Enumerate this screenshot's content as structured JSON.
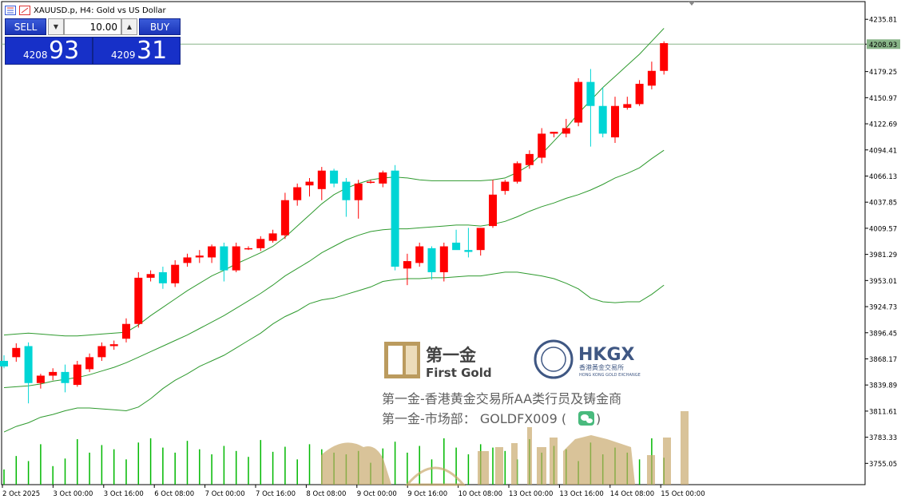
{
  "window": {
    "title": "XAUUSD.p, H4:  Gold vs US Dollar"
  },
  "trade_panel": {
    "sell_label": "SELL",
    "buy_label": "BUY",
    "lot_value": "10.00",
    "lot_down_icon": "triangle-down",
    "lot_up_icon": "triangle-up",
    "sell_price_prefix": "4208",
    "sell_price_big": "93",
    "buy_price_prefix": "4209",
    "buy_price_big": "31"
  },
  "watermark": {
    "first_gold_cn": "第一金",
    "first_gold_en": "First Gold",
    "hkgx": "HKGX",
    "hkgx_cn": "香港黃金交易所",
    "hkgx_en": "HONG KONG GOLD EXCHANGE",
    "line1": "第一金-香港黄金交易所AA类行员及铸金商",
    "line2": "第一金-市场部：  GOLDFX009  (",
    "line2_end": ")",
    "wechat_icon": "wechat-icon"
  },
  "colors": {
    "bull": "#ff0000",
    "bear": "#00d5d5",
    "band": "#2e9a2e",
    "volume": "#00b800",
    "price_line": "#88b488"
  },
  "chart_data": {
    "type": "candlestick",
    "symbol": "XAUUSD.p",
    "timeframe": "H4",
    "current_price": 4208.93,
    "ylim": [
      3732,
      4255
    ],
    "y_ticks": [
      "4235.81",
      "4208.93",
      "4179.25",
      "4150.97",
      "4122.69",
      "4094.41",
      "4066.13",
      "4037.85",
      "4009.57",
      "3981.29",
      "3953.01",
      "3924.73",
      "3896.45",
      "3868.17",
      "3839.89",
      "3811.61",
      "3783.33",
      "3755.05"
    ],
    "x_ticks": [
      "2 Oct 2025",
      "3 Oct 00:00",
      "3 Oct 16:00",
      "6 Oct 08:00",
      "7 Oct 00:00",
      "7 Oct 16:00",
      "8 Oct 08:00",
      "9 Oct 00:00",
      "9 Oct 16:00",
      "10 Oct 08:00",
      "13 Oct 00:00",
      "13 Oct 16:00",
      "14 Oct 08:00",
      "15 Oct 00:00"
    ],
    "candles": [
      [
        3866,
        3872,
        3858,
        3860
      ],
      [
        3870,
        3885,
        3865,
        3880
      ],
      [
        3882,
        3886,
        3820,
        3842
      ],
      [
        3842,
        3852,
        3836,
        3850
      ],
      [
        3850,
        3858,
        3845,
        3854
      ],
      [
        3854,
        3862,
        3832,
        3842
      ],
      [
        3840,
        3866,
        3838,
        3862
      ],
      [
        3857,
        3874,
        3854,
        3870
      ],
      [
        3870,
        3886,
        3866,
        3882
      ],
      [
        3882,
        3888,
        3878,
        3884
      ],
      [
        3890,
        3912,
        3886,
        3906
      ],
      [
        3906,
        3962,
        3902,
        3956
      ],
      [
        3956,
        3964,
        3952,
        3960
      ],
      [
        3962,
        3968,
        3944,
        3950
      ],
      [
        3950,
        3975,
        3946,
        3970
      ],
      [
        3972,
        3982,
        3968,
        3978
      ],
      [
        3978,
        3986,
        3972,
        3980
      ],
      [
        3978,
        3992,
        3972,
        3990
      ],
      [
        3990,
        3994,
        3952,
        3964
      ],
      [
        3964,
        3994,
        3962,
        3990
      ],
      [
        3988,
        3990,
        3986,
        3988
      ],
      [
        3988,
        4001,
        3985,
        3998
      ],
      [
        3996,
        4008,
        3994,
        4004
      ],
      [
        4002,
        4048,
        3998,
        4040
      ],
      [
        4040,
        4058,
        4034,
        4054
      ],
      [
        4056,
        4064,
        4044,
        4060
      ],
      [
        4052,
        4076,
        4040,
        4072
      ],
      [
        4072,
        4074,
        4054,
        4058
      ],
      [
        4060,
        4064,
        4022,
        4040
      ],
      [
        4040,
        4062,
        4020,
        4058
      ],
      [
        4060,
        4062,
        4058,
        4060
      ],
      [
        4058,
        4072,
        4054,
        4070
      ],
      [
        4072,
        4078,
        3964,
        3968
      ],
      [
        3966,
        3982,
        3948,
        3974
      ],
      [
        3972,
        3994,
        3968,
        3990
      ],
      [
        3988,
        3990,
        3954,
        3962
      ],
      [
        3962,
        3994,
        3952,
        3990
      ],
      [
        3994,
        4008,
        3988,
        3986
      ],
      [
        3986,
        4010,
        3978,
        3984
      ],
      [
        3986,
        4010,
        3980,
        4010
      ],
      [
        4012,
        4062,
        4010,
        4046
      ],
      [
        4050,
        4062,
        4046,
        4060
      ],
      [
        4060,
        4082,
        4058,
        4080
      ],
      [
        4078,
        4094,
        4074,
        4090
      ],
      [
        4086,
        4118,
        4080,
        4112
      ],
      [
        4112,
        4112,
        4108,
        4114
      ],
      [
        4112,
        4128,
        4108,
        4118
      ],
      [
        4124,
        4172,
        4120,
        4168
      ],
      [
        4168,
        4182,
        4098,
        4142
      ],
      [
        4142,
        4162,
        4108,
        4112
      ],
      [
        4108,
        4152,
        4102,
        4142
      ],
      [
        4140,
        4152,
        4138,
        4144
      ],
      [
        4144,
        4170,
        4142,
        4166
      ],
      [
        4164,
        4190,
        4160,
        4180
      ],
      [
        4180,
        4212,
        4176,
        4210
      ]
    ],
    "bands": {
      "upper": [
        3894,
        3895,
        3896,
        3895,
        3894,
        3893,
        3893,
        3894,
        3895,
        3896,
        3897,
        3905,
        3915,
        3924,
        3933,
        3942,
        3950,
        3958,
        3964,
        3971,
        3977,
        3983,
        3990,
        4000,
        4012,
        4024,
        4036,
        4046,
        4053,
        4058,
        4062,
        4064,
        4065,
        4064,
        4062,
        4061,
        4061,
        4061,
        4061,
        4061,
        4062,
        4064,
        4070,
        4078,
        4090,
        4104,
        4118,
        4134,
        4148,
        4162,
        4174,
        4186,
        4198,
        4212,
        4226
      ],
      "middle": [
        3837,
        3838,
        3839,
        3841,
        3844,
        3846,
        3848,
        3851,
        3855,
        3859,
        3864,
        3870,
        3876,
        3882,
        3888,
        3894,
        3901,
        3908,
        3915,
        3923,
        3931,
        3939,
        3948,
        3958,
        3966,
        3974,
        3983,
        3990,
        3997,
        4002,
        4006,
        4008,
        4009,
        4009,
        4010,
        4011,
        4012,
        4013,
        4013,
        4012,
        4014,
        4017,
        4022,
        4028,
        4033,
        4037,
        4042,
        4046,
        4051,
        4057,
        4064,
        4069,
        4075,
        4085,
        4094
      ],
      "lower": [
        3789,
        3795,
        3799,
        3805,
        3808,
        3812,
        3815,
        3815,
        3814,
        3813,
        3812,
        3816,
        3825,
        3836,
        3845,
        3852,
        3860,
        3866,
        3872,
        3880,
        3888,
        3896,
        3906,
        3914,
        3920,
        3928,
        3932,
        3934,
        3938,
        3942,
        3946,
        3952,
        3954,
        3955,
        3955,
        3956,
        3956,
        3957,
        3958,
        3958,
        3960,
        3962,
        3962,
        3960,
        3958,
        3955,
        3950,
        3944,
        3934,
        3930,
        3929,
        3930,
        3930,
        3938,
        3948
      ]
    },
    "volume": [
      18,
      34,
      28,
      48,
      22,
      31,
      54,
      38,
      47,
      42,
      30,
      50,
      55,
      44,
      38,
      52,
      42,
      36,
      46,
      40,
      33,
      53,
      39,
      45,
      30,
      48,
      42,
      38,
      36,
      40,
      26,
      43,
      51,
      38,
      46,
      30,
      55,
      44,
      36,
      48,
      44,
      40,
      30,
      54,
      38,
      46,
      42,
      28,
      50,
      36,
      44,
      38,
      30,
      55,
      32
    ]
  }
}
